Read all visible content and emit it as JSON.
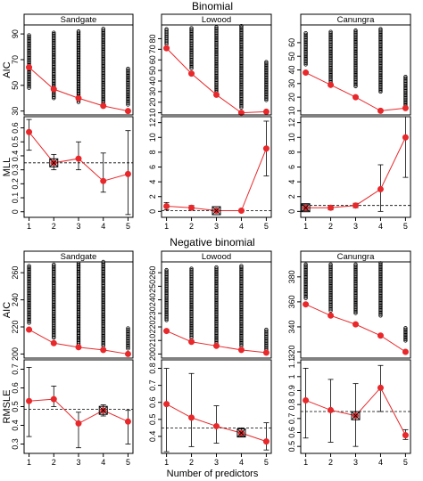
{
  "figure": {
    "sections": [
      {
        "title": "Binomial"
      },
      {
        "title": "Negative binomial"
      }
    ],
    "x_axis_label": "Number of predictors"
  },
  "chart_data": [
    {
      "type": "scatter",
      "section": "Binomial",
      "panel_title": "Sandgate",
      "ylabel": "AIC",
      "ylim": [
        27,
        97
      ],
      "yticks": [
        30,
        50,
        70,
        90
      ],
      "xlim": [
        0.8,
        5.2
      ],
      "xticks": [
        1,
        2,
        3,
        4,
        5
      ],
      "show_xticks": false,
      "clouds": [
        {
          "x": 1,
          "min": 48,
          "max": 89
        },
        {
          "x": 2,
          "min": 40,
          "max": 91
        },
        {
          "x": 3,
          "min": 37,
          "max": 92
        },
        {
          "x": 4,
          "min": 34,
          "max": 94
        },
        {
          "x": 5,
          "min": 35,
          "max": 63
        }
      ],
      "best": [
        64,
        47,
        40,
        34,
        30
      ]
    },
    {
      "type": "line",
      "section": "Binomial",
      "panel_title": "",
      "ylabel": "MLL",
      "ylim": [
        -0.04,
        0.68
      ],
      "yticks": [
        0.0,
        0.1,
        0.2,
        0.3,
        0.4,
        0.5,
        0.6
      ],
      "xlim": [
        0.8,
        5.2
      ],
      "xticks": [
        1,
        2,
        3,
        4,
        5
      ],
      "show_xticks": true,
      "values": [
        0.57,
        0.35,
        0.38,
        0.22,
        0.27
      ],
      "err_low": [
        0.44,
        0.3,
        0.3,
        0.14,
        -0.02
      ],
      "err_high": [
        0.66,
        0.41,
        0.5,
        0.42,
        0.58
      ],
      "reference": 0.35,
      "selected_index": 1
    },
    {
      "type": "scatter",
      "section": "Binomial",
      "panel_title": "Lowood",
      "ylabel": "",
      "ylim": [
        8,
        93
      ],
      "yticks": [
        10,
        20,
        30,
        40,
        50,
        60,
        70,
        80
      ],
      "xlim": [
        0.8,
        5.2
      ],
      "xticks": [
        1,
        2,
        3,
        4,
        5
      ],
      "show_xticks": false,
      "clouds": [
        {
          "x": 1,
          "min": 75,
          "max": 89
        },
        {
          "x": 2,
          "min": 52,
          "max": 90
        },
        {
          "x": 3,
          "min": 30,
          "max": 91
        },
        {
          "x": 4,
          "min": 15,
          "max": 92
        },
        {
          "x": 5,
          "min": 22,
          "max": 58
        }
      ],
      "best": [
        71,
        47,
        27,
        10,
        11
      ]
    },
    {
      "type": "line",
      "section": "Binomial",
      "panel_title": "",
      "ylabel": "",
      "ylim": [
        -0.8,
        12.8
      ],
      "yticks": [
        0,
        2,
        4,
        6,
        8,
        10,
        12
      ],
      "xlim": [
        0.8,
        5.2
      ],
      "xticks": [
        1,
        2,
        3,
        4,
        5
      ],
      "show_xticks": true,
      "values": [
        0.7,
        0.5,
        0.1,
        0.1,
        8.5
      ],
      "err_low": [
        0.2,
        0.2,
        0.0,
        0.0,
        4.8
      ],
      "err_high": [
        1.2,
        0.8,
        0.3,
        0.3,
        12.2
      ],
      "reference": 0.1,
      "selected_index": 2
    },
    {
      "type": "scatter",
      "section": "Binomial",
      "panel_title": "Canungra",
      "ylabel": "",
      "ylim": [
        7,
        73
      ],
      "yticks": [
        10,
        20,
        30,
        40,
        50,
        60
      ],
      "xlim": [
        0.8,
        5.2
      ],
      "xticks": [
        1,
        2,
        3,
        4,
        5
      ],
      "show_xticks": false,
      "clouds": [
        {
          "x": 1,
          "min": 44,
          "max": 67
        },
        {
          "x": 2,
          "min": 30,
          "max": 68
        },
        {
          "x": 3,
          "min": 28,
          "max": 69
        },
        {
          "x": 4,
          "min": 24,
          "max": 70
        },
        {
          "x": 5,
          "min": 13,
          "max": 35
        }
      ],
      "best": [
        38,
        29,
        20,
        10,
        12
      ]
    },
    {
      "type": "line",
      "section": "Binomial",
      "panel_title": "",
      "ylabel": "",
      "ylim": [
        -0.8,
        12.8
      ],
      "yticks": [
        0,
        2,
        4,
        6,
        8,
        10,
        12
      ],
      "xlim": [
        0.8,
        5.2
      ],
      "xticks": [
        1,
        2,
        3,
        4,
        5
      ],
      "show_xticks": true,
      "values": [
        0.5,
        0.5,
        0.8,
        3.0,
        10.0
      ],
      "err_low": [
        0.1,
        0.2,
        0.5,
        0.0,
        4.6
      ],
      "err_high": [
        0.9,
        0.8,
        1.1,
        6.3,
        15.5
      ],
      "reference": 0.8,
      "selected_index": 0
    },
    {
      "type": "scatter",
      "section": "Negative binomial",
      "panel_title": "Sandgate",
      "ylabel": "AIC",
      "ylim": [
        197,
        268
      ],
      "yticks": [
        200,
        220,
        240,
        260
      ],
      "xlim": [
        0.8,
        5.2
      ],
      "xticks": [
        1,
        2,
        3,
        4,
        5
      ],
      "show_xticks": false,
      "clouds": [
        {
          "x": 1,
          "min": 223,
          "max": 265
        },
        {
          "x": 2,
          "min": 212,
          "max": 266
        },
        {
          "x": 3,
          "min": 207,
          "max": 267
        },
        {
          "x": 4,
          "min": 206,
          "max": 268
        },
        {
          "x": 5,
          "min": 204,
          "max": 219
        }
      ],
      "best": [
        218,
        208,
        205,
        203,
        200
      ]
    },
    {
      "type": "line",
      "section": "Negative binomial",
      "panel_title": "",
      "ylabel": "RMSLE",
      "ylim": [
        0.25,
        0.75
      ],
      "yticks": [
        0.3,
        0.4,
        0.5,
        0.6,
        0.7
      ],
      "xlim": [
        0.8,
        5.2
      ],
      "xticks": [
        1,
        2,
        3,
        4,
        5
      ],
      "show_xticks": true,
      "values": [
        0.53,
        0.54,
        0.41,
        0.48,
        0.42
      ],
      "err_low": [
        0.34,
        0.5,
        0.28,
        0.45,
        0.3
      ],
      "err_high": [
        0.71,
        0.61,
        0.47,
        0.51,
        0.48
      ],
      "reference": 0.485,
      "selected_index": 3
    },
    {
      "type": "scatter",
      "section": "Negative binomial",
      "panel_title": "Lowood",
      "ylabel": "",
      "ylim": [
        197,
        268
      ],
      "yticks": [
        200,
        210,
        220,
        230,
        240,
        250,
        260
      ],
      "xlim": [
        0.8,
        5.2
      ],
      "xticks": [
        1,
        2,
        3,
        4,
        5
      ],
      "show_xticks": false,
      "clouds": [
        {
          "x": 1,
          "min": 225,
          "max": 262
        },
        {
          "x": 2,
          "min": 212,
          "max": 263
        },
        {
          "x": 3,
          "min": 207,
          "max": 264
        },
        {
          "x": 4,
          "min": 206,
          "max": 265
        },
        {
          "x": 5,
          "min": 203,
          "max": 218
        }
      ],
      "best": [
        217,
        209,
        206,
        203,
        201
      ]
    },
    {
      "type": "line",
      "section": "Negative binomial",
      "panel_title": "",
      "ylabel": "",
      "ylim": [
        0.3,
        0.85
      ],
      "yticks": [
        0.4,
        0.5,
        0.6,
        0.7,
        0.8
      ],
      "xlim": [
        0.8,
        5.2
      ],
      "xticks": [
        1,
        2,
        3,
        4,
        5
      ],
      "show_xticks": true,
      "values": [
        0.59,
        0.51,
        0.46,
        0.42,
        0.37
      ],
      "err_low": [
        0.31,
        0.34,
        0.36,
        0.4,
        0.32
      ],
      "err_high": [
        0.8,
        0.77,
        0.58,
        0.45,
        0.48
      ],
      "reference": 0.45,
      "selected_index": 3
    },
    {
      "type": "scatter",
      "section": "Negative binomial",
      "panel_title": "Canungra",
      "ylabel": "",
      "ylim": [
        315,
        392
      ],
      "yticks": [
        320,
        340,
        360,
        380
      ],
      "xlim": [
        0.8,
        5.2
      ],
      "xticks": [
        1,
        2,
        3,
        4,
        5
      ],
      "show_xticks": false,
      "clouds": [
        {
          "x": 1,
          "min": 363,
          "max": 390
        },
        {
          "x": 2,
          "min": 353,
          "max": 390
        },
        {
          "x": 3,
          "min": 351,
          "max": 390
        },
        {
          "x": 4,
          "min": 349,
          "max": 391
        },
        {
          "x": 5,
          "min": 329,
          "max": 339
        }
      ],
      "best": [
        358,
        349,
        342,
        333,
        320
      ]
    },
    {
      "type": "line",
      "section": "Negative binomial",
      "panel_title": "",
      "ylabel": "",
      "ylim": [
        0.45,
        1.12
      ],
      "yticks": [
        0.5,
        0.6,
        0.7,
        0.8,
        0.9,
        1.0,
        1.1
      ],
      "xlim": [
        0.8,
        5.2
      ],
      "xticks": [
        1,
        2,
        3,
        4,
        5
      ],
      "show_xticks": true,
      "values": [
        0.83,
        0.76,
        0.72,
        0.92,
        0.58
      ],
      "err_low": [
        0.56,
        0.53,
        0.5,
        0.75,
        0.55
      ],
      "err_high": [
        1.06,
        0.98,
        0.95,
        1.08,
        0.62
      ],
      "reference": 0.75,
      "selected_index": 2
    }
  ]
}
